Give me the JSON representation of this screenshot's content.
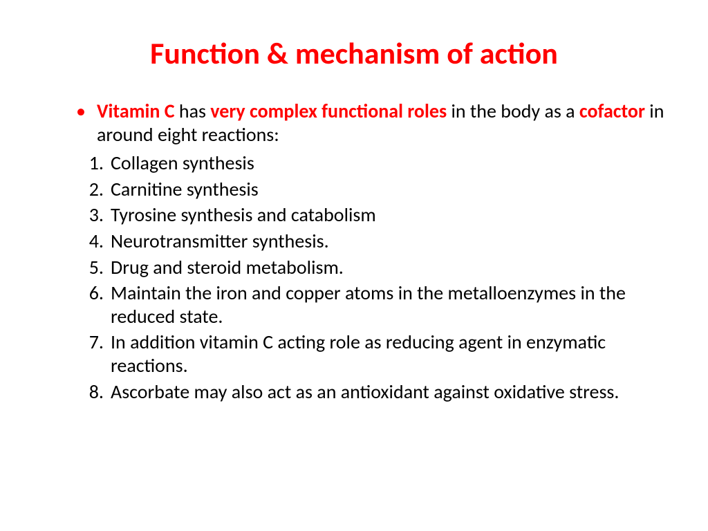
{
  "title": "Function & mechanism of action",
  "intro": {
    "seg1": "Vitamin C",
    "seg2": " has ",
    "seg3": "very complex functional roles",
    "seg4": " in the body as a ",
    "seg5": "cofactor",
    "seg6": " in around eight reactions:"
  },
  "items": [
    "Collagen synthesis",
    " Carnitine synthesis",
    " Tyrosine synthesis and catabolism",
    "Neurotransmitter synthesis.",
    "Drug and steroid metabolism.",
    "Maintain the iron and copper atoms in the metalloenzymes in the reduced state.",
    "In addition vitamin C acting role as reducing agent in enzymatic reactions.",
    "Ascorbate may also act as an antioxidant against oxidative stress."
  ],
  "colors": {
    "title": "#ff0000",
    "emphasis": "#ff0000",
    "body": "#000000",
    "background": "#ffffff"
  },
  "typography": {
    "title_fontsize": 44,
    "body_fontsize": 28,
    "font_family": "Calibri"
  }
}
